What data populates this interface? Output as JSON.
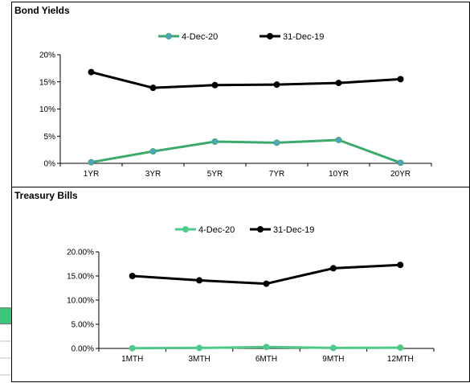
{
  "colors": {
    "series_green": "#3daa6d",
    "marker_green_fill": "#4da6c8",
    "series_black": "#000000",
    "bills_green": "#4ec98a",
    "axis": "#000000"
  },
  "panels": {
    "bonds": {
      "title": "Bond Yields"
    },
    "bills": {
      "title": "Treasury  Bills"
    }
  },
  "chart_data": [
    {
      "type": "line",
      "title": "Bond Yields",
      "categories": [
        "1YR",
        "3YR",
        "5YR",
        "7YR",
        "10YR",
        "20YR"
      ],
      "series": [
        {
          "name": "4-Dec-20",
          "values": [
            0.2,
            2.2,
            4.0,
            3.8,
            4.3,
            0.1
          ]
        },
        {
          "name": "31-Dec-19",
          "values": [
            16.8,
            13.9,
            14.4,
            14.5,
            14.8,
            15.5
          ]
        }
      ],
      "yticks": [
        "0%",
        "5%",
        "10%",
        "15%",
        "20%"
      ],
      "ylim": [
        0,
        20
      ],
      "legend": "top-center",
      "grid": false
    },
    {
      "type": "line",
      "title": "Treasury  Bills",
      "categories": [
        "1MTH",
        "3MTH",
        "6MTH",
        "9MTH",
        "12MTH"
      ],
      "series": [
        {
          "name": "4-Dec-20",
          "values": [
            0.05,
            0.1,
            0.3,
            0.1,
            0.15
          ]
        },
        {
          "name": "31-Dec-19",
          "values": [
            15.0,
            14.1,
            13.4,
            16.6,
            17.3
          ]
        }
      ],
      "yticks": [
        "0.00%",
        "5.00%",
        "10.00%",
        "15.00%",
        "20.00%"
      ],
      "ylim": [
        0,
        20
      ],
      "legend": "top-center",
      "grid": false
    }
  ]
}
